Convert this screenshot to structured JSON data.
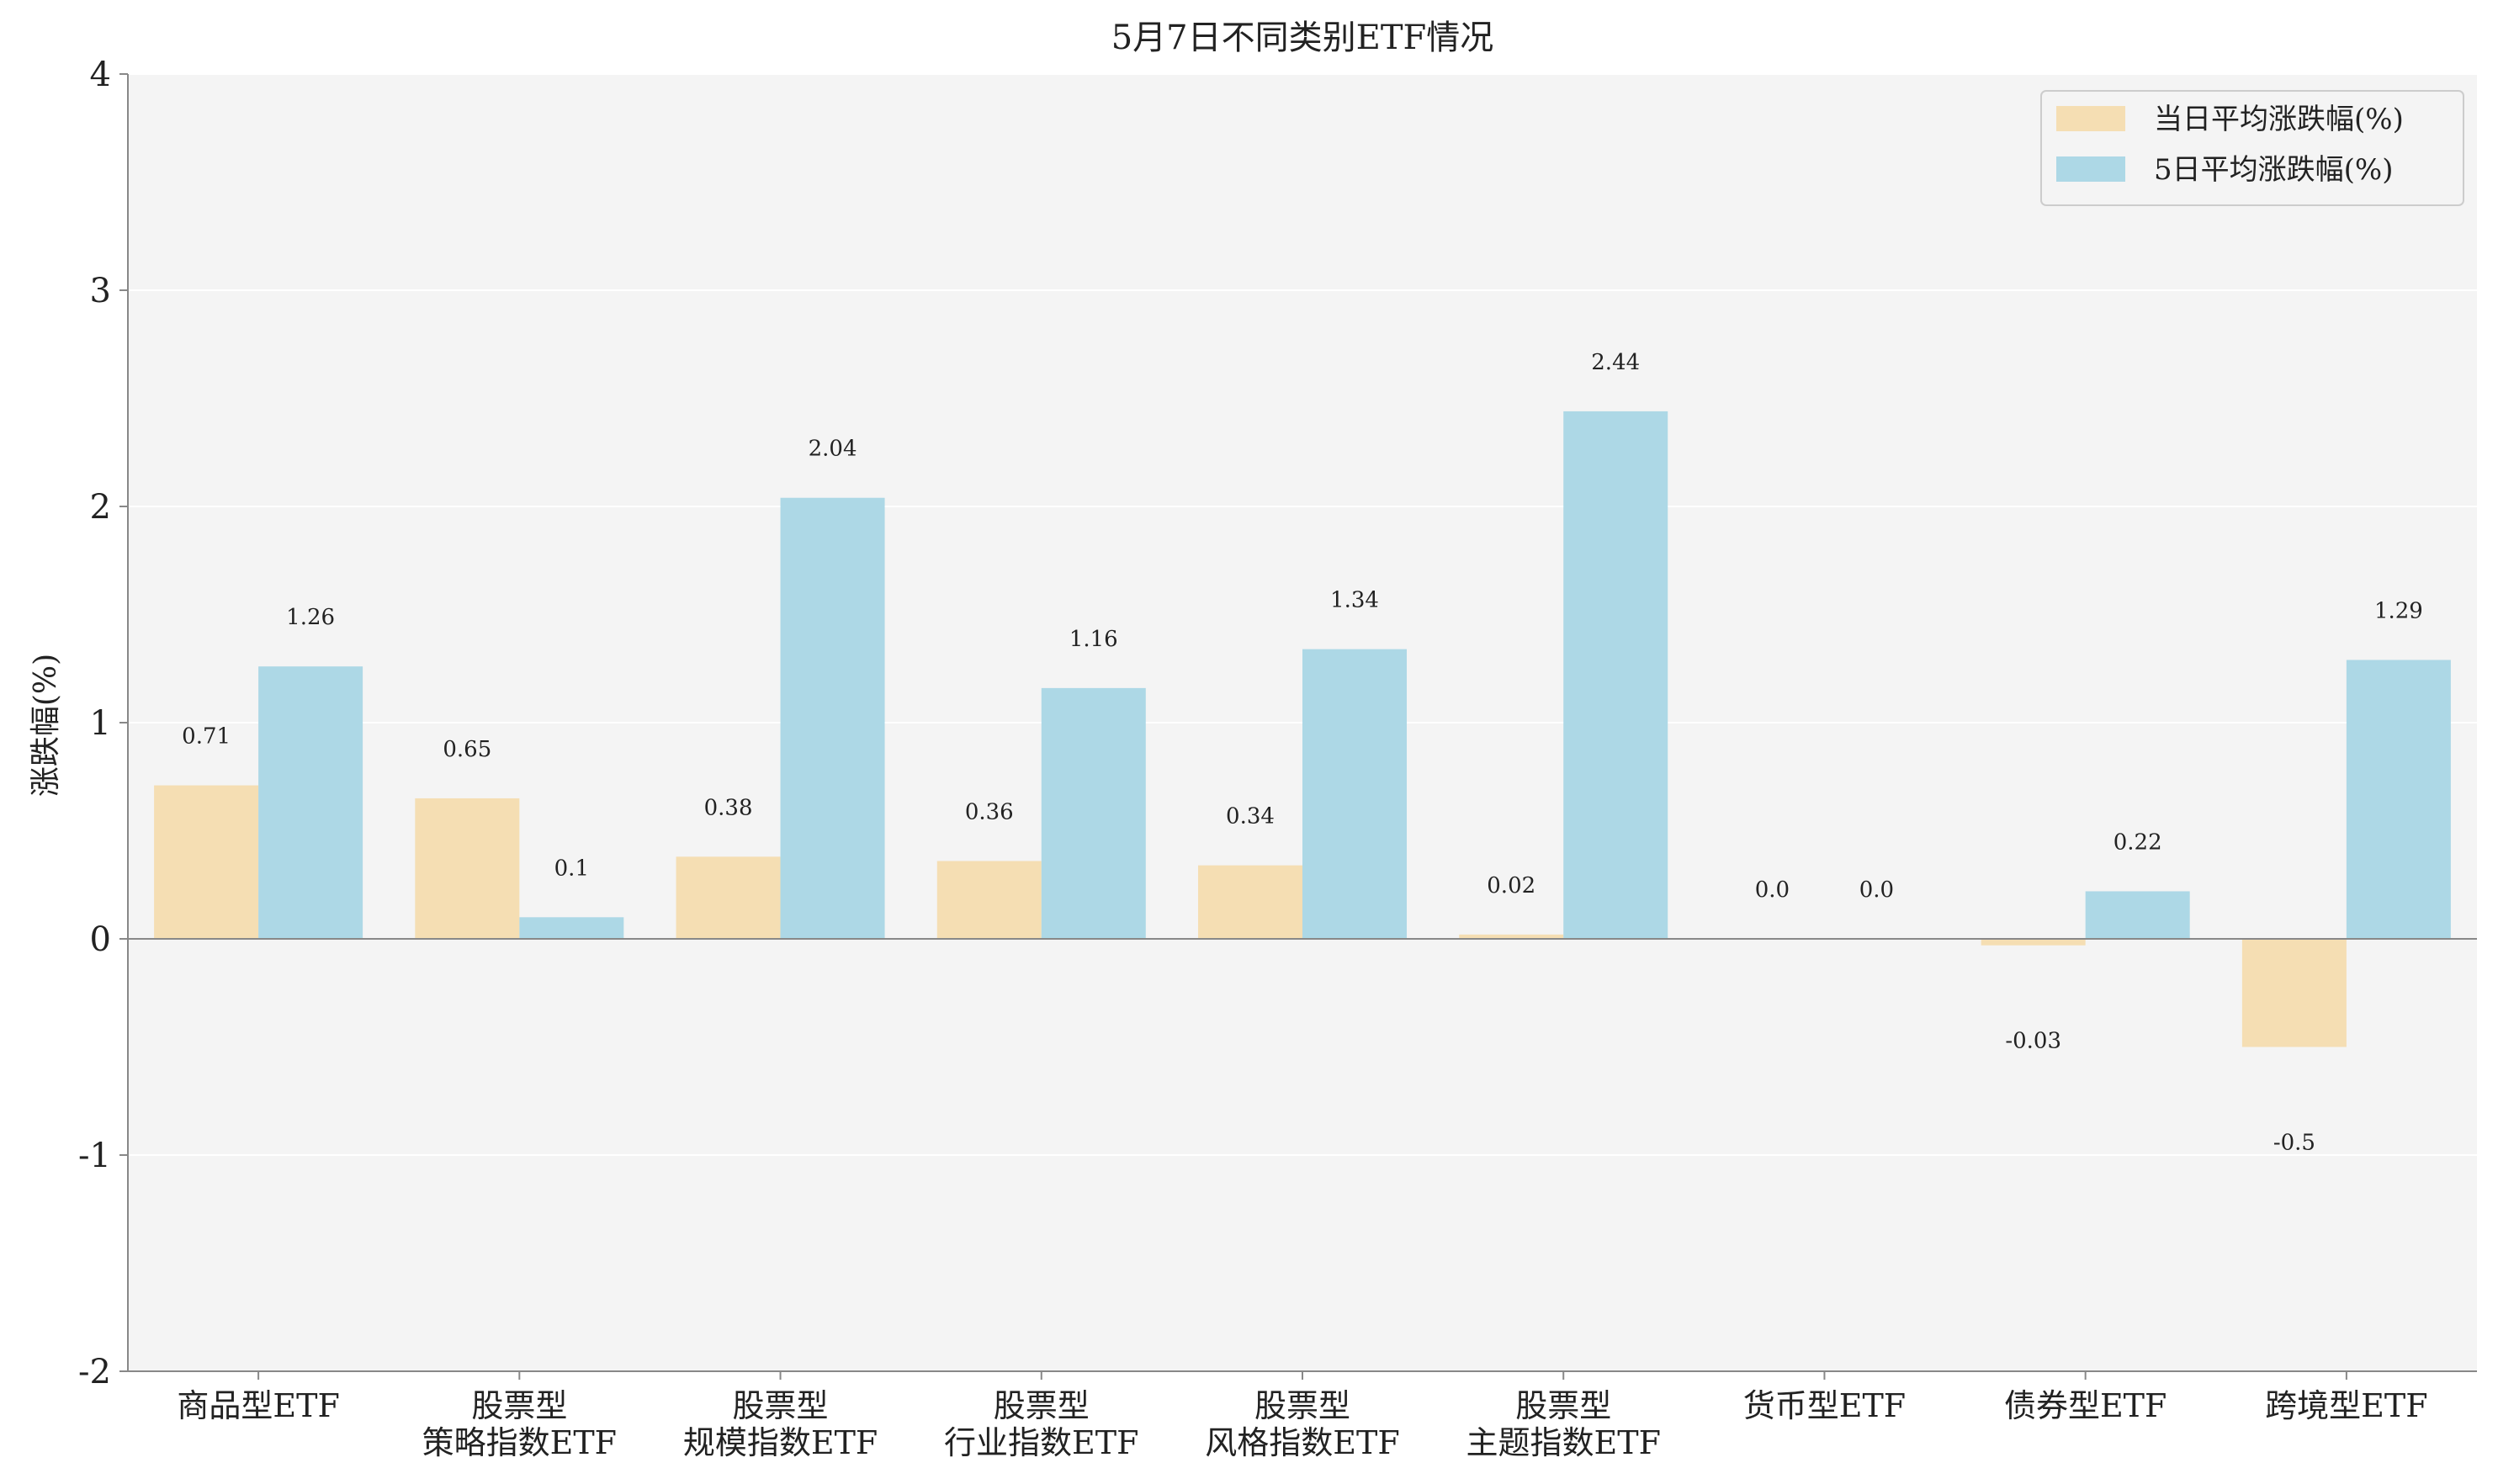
{
  "chart_data": {
    "type": "bar",
    "title": "5月7日不同类别ETF情况",
    "xlabel": "",
    "ylabel": "涨跌幅(%)",
    "ylim": [
      -2,
      4
    ],
    "yticks": [
      "-2",
      "-1",
      "0",
      "1",
      "2",
      "3",
      "4"
    ],
    "grid": "horizontal",
    "legend_position": "top-right",
    "categories": [
      [
        "商品型ETF"
      ],
      [
        "股票型",
        "策略指数ETF"
      ],
      [
        "股票型",
        "规模指数ETF"
      ],
      [
        "股票型",
        "行业指数ETF"
      ],
      [
        "股票型",
        "风格指数ETF"
      ],
      [
        "股票型",
        "主题指数ETF"
      ],
      [
        "货币型ETF"
      ],
      [
        "债券型ETF"
      ],
      [
        "跨境型ETF"
      ]
    ],
    "series": [
      {
        "name": "当日平均涨跌幅(%)",
        "color": "#f5deb3",
        "values": [
          0.71,
          0.65,
          0.38,
          0.36,
          0.34,
          0.02,
          0.0,
          -0.03,
          -0.5
        ],
        "labels": [
          "0.71",
          "0.65",
          "0.38",
          "0.36",
          "0.34",
          "0.02",
          "0.0",
          "-0.03",
          "-0.5"
        ]
      },
      {
        "name": "5日平均涨跌幅(%)",
        "color": "#add8e6",
        "values": [
          1.26,
          0.1,
          2.04,
          1.16,
          1.34,
          2.44,
          0.0,
          0.22,
          1.29
        ],
        "labels": [
          "1.26",
          "0.1",
          "2.04",
          "1.16",
          "1.34",
          "2.44",
          "0.0",
          "0.22",
          "1.29"
        ]
      }
    ],
    "colors": {
      "plot_background": "#f4f4f4",
      "grid": "#ffffff",
      "axis": "#888888",
      "zero_line": "#888888"
    }
  }
}
